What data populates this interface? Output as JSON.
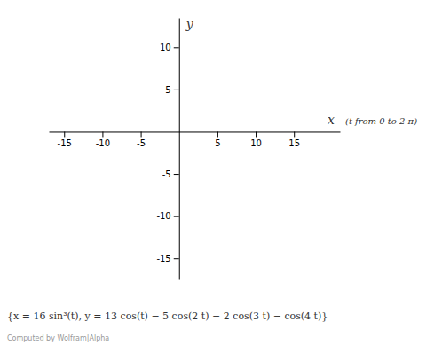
{
  "chart_data": {
    "type": "line",
    "xlabel": "x",
    "ylabel": "y",
    "xlim": [
      -17,
      21
    ],
    "ylim": [
      -17.5,
      13.5
    ],
    "xticks": [
      -15,
      -10,
      -5,
      5,
      10,
      15
    ],
    "yticks": [
      10,
      5,
      -5,
      -10,
      -15
    ],
    "annotations": [
      "(t  from 0 to 2 π)",
      "{x = 16 sin³(t),  y = 13 cos(t) − 5 cos(2 t) − 2 cos(3 t) − cos(4 t)}",
      "Computed by Wolfram|Alpha"
    ],
    "grid": false
  }
}
